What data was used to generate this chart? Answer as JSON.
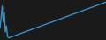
{
  "line_color": "#3a8fc7",
  "bg_color": "#1a1a1a",
  "linewidth": 1.0,
  "spike_x": [
    0,
    1,
    2,
    3,
    4,
    5,
    6,
    7,
    8
  ],
  "spike_y": [
    30,
    55,
    85,
    45,
    70,
    20,
    35,
    10,
    5
  ],
  "diag_start_x": 8,
  "diag_start_y": 5,
  "diag_end_x": 99,
  "diag_end_y": 95,
  "ylim": [
    0,
    100
  ],
  "xlim": [
    0,
    99
  ]
}
